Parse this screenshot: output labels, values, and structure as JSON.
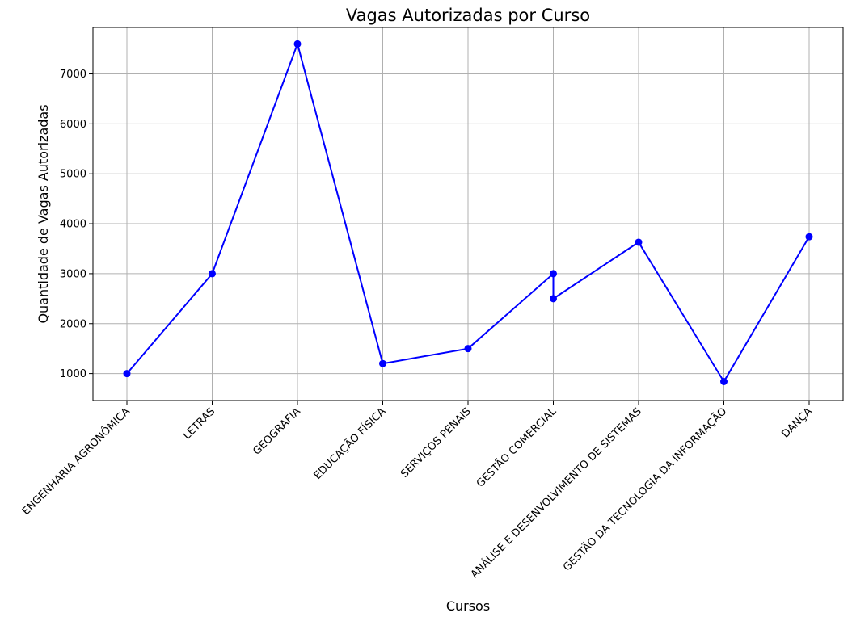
{
  "chart_data": {
    "type": "line",
    "title": "Vagas Autorizadas por Curso",
    "xlabel": "Cursos",
    "ylabel": "Quantidade de Vagas Autorizadas",
    "categories": [
      "ENGENHARIA AGRONÔMICA",
      "LETRAS",
      "GEOGRAFIA",
      "EDUCAÇÃO FÍSICA",
      "SERVIÇOS PENAIS",
      "GESTÃO COMERCIAL",
      "ANÁLISE E DESENVOLVIMENTO DE SISTEMAS",
      "GESTÃO DA TECNOLOGIA DA INFORMAÇÃO",
      "DANÇA"
    ],
    "points": [
      {
        "category": "ENGENHARIA AGRONÔMICA",
        "value": 1000
      },
      {
        "category": "LETRAS",
        "value": 3000
      },
      {
        "category": "GEOGRAFIA",
        "value": 7600
      },
      {
        "category": "EDUCAÇÃO FÍSICA",
        "value": 1200
      },
      {
        "category": "SERVIÇOS PENAIS",
        "value": 1500
      },
      {
        "category": "GESTÃO COMERCIAL",
        "value": 3000
      },
      {
        "category": "GESTÃO COMERCIAL",
        "value": 2500
      },
      {
        "category": "ANÁLISE E DESENVOLVIMENTO DE SISTEMAS",
        "value": 3630
      },
      {
        "category": "GESTÃO DA TECNOLOGIA DA INFORMAÇÃO",
        "value": 840
      },
      {
        "category": "DANÇA",
        "value": 3740
      }
    ],
    "yticks": [
      1000,
      2000,
      3000,
      4000,
      5000,
      6000,
      7000
    ],
    "ylim": [
      460,
      7930
    ],
    "grid": true,
    "marker": "circle",
    "color": "#0000ff"
  }
}
